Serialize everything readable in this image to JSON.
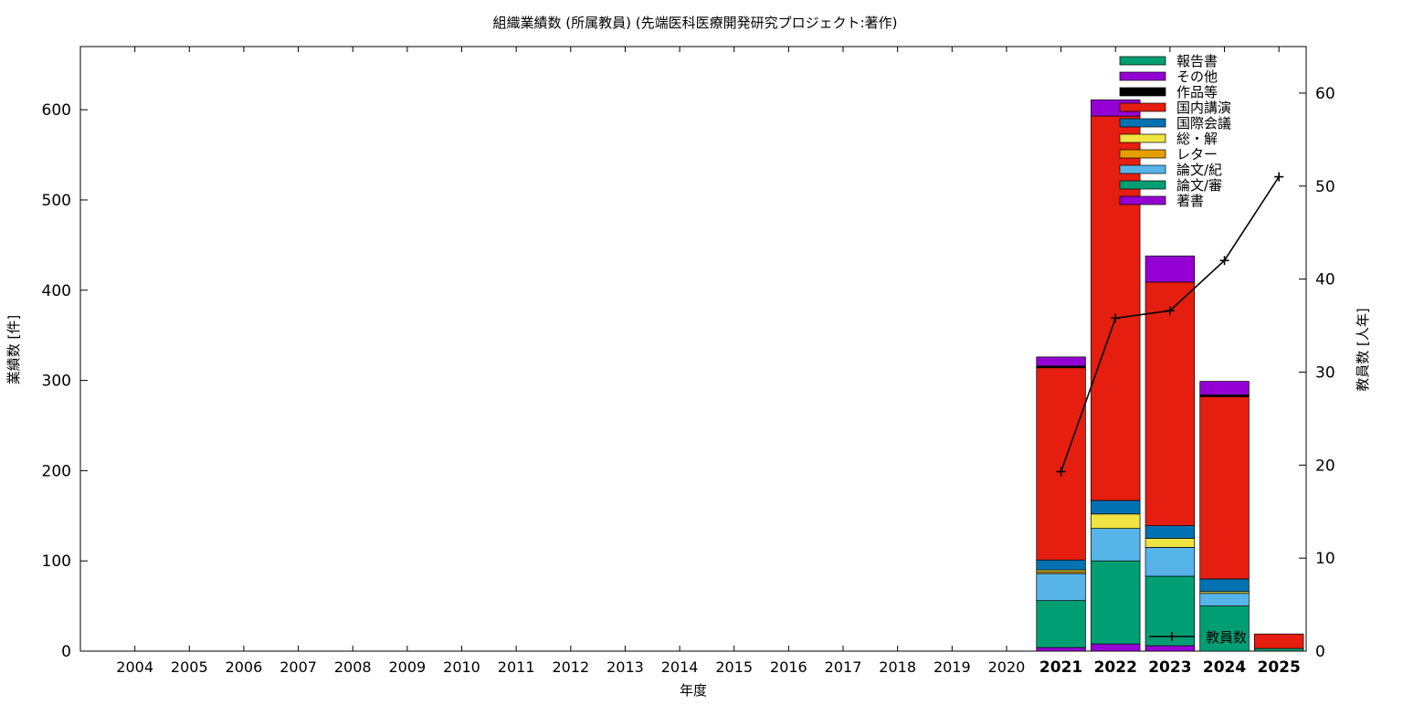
{
  "chart_data": {
    "type": "bar",
    "title": "組織業績数 (所属教員) (先端医科医療開発研究プロジェクト:著作)",
    "xlabel": "年度",
    "ylabel": "業績数 [件]",
    "y2label": "教員数 [人年]",
    "categories": [
      "2004",
      "2005",
      "2006",
      "2007",
      "2008",
      "2009",
      "2010",
      "2011",
      "2012",
      "2013",
      "2014",
      "2015",
      "2016",
      "2017",
      "2018",
      "2019",
      "2020",
      "2021",
      "2022",
      "2023",
      "2024",
      "2025"
    ],
    "bold_categories": [
      "2021",
      "2022",
      "2023",
      "2024",
      "2025"
    ],
    "ylim": [
      0,
      670
    ],
    "yticks": [
      0,
      100,
      200,
      300,
      400,
      500,
      600
    ],
    "y2lim": [
      0,
      65
    ],
    "y2ticks": [
      0,
      10,
      20,
      30,
      40,
      50,
      60
    ],
    "stacked": true,
    "legend_position": "top-right",
    "series": [
      {
        "name": "著書",
        "color": "#9400d3",
        "values": [
          0,
          0,
          0,
          0,
          0,
          0,
          0,
          0,
          0,
          0,
          0,
          0,
          0,
          0,
          0,
          0,
          0,
          4,
          8,
          6,
          0,
          0
        ]
      },
      {
        "name": "論文/審",
        "color": "#009e73",
        "values": [
          0,
          0,
          0,
          0,
          0,
          0,
          0,
          0,
          0,
          0,
          0,
          0,
          0,
          0,
          0,
          0,
          0,
          52,
          92,
          77,
          50,
          3
        ]
      },
      {
        "name": "論文/紀",
        "color": "#56b4e9",
        "values": [
          0,
          0,
          0,
          0,
          0,
          0,
          0,
          0,
          0,
          0,
          0,
          0,
          0,
          0,
          0,
          0,
          0,
          30,
          36,
          32,
          14,
          0
        ]
      },
      {
        "name": "レター",
        "color": "#e69f00",
        "values": [
          0,
          0,
          0,
          0,
          0,
          0,
          0,
          0,
          0,
          0,
          0,
          0,
          0,
          0,
          0,
          0,
          0,
          2,
          0,
          0,
          0,
          0
        ]
      },
      {
        "name": "総・解",
        "color": "#f0e442",
        "values": [
          0,
          0,
          0,
          0,
          0,
          0,
          0,
          0,
          0,
          0,
          0,
          0,
          0,
          0,
          0,
          0,
          0,
          2,
          16,
          10,
          2,
          0
        ]
      },
      {
        "name": "国際会議",
        "color": "#0072b2",
        "values": [
          0,
          0,
          0,
          0,
          0,
          0,
          0,
          0,
          0,
          0,
          0,
          0,
          0,
          0,
          0,
          0,
          0,
          11,
          15,
          14,
          14,
          0
        ]
      },
      {
        "name": "国内講演",
        "color": "#e51e10",
        "values": [
          0,
          0,
          0,
          0,
          0,
          0,
          0,
          0,
          0,
          0,
          0,
          0,
          0,
          0,
          0,
          0,
          0,
          213,
          426,
          270,
          202,
          16
        ]
      },
      {
        "name": "作品等",
        "color": "#000000",
        "values": [
          0,
          0,
          0,
          0,
          0,
          0,
          0,
          0,
          0,
          0,
          0,
          0,
          0,
          0,
          0,
          0,
          0,
          2,
          0,
          0,
          2,
          0
        ]
      },
      {
        "name": "その他",
        "color": "#9400d3",
        "values": [
          0,
          0,
          0,
          0,
          0,
          0,
          0,
          0,
          0,
          0,
          0,
          0,
          0,
          0,
          0,
          0,
          0,
          10,
          18,
          29,
          15,
          0
        ]
      },
      {
        "name": "報告書",
        "color": "#009e73",
        "values": [
          0,
          0,
          0,
          0,
          0,
          0,
          0,
          0,
          0,
          0,
          0,
          0,
          0,
          0,
          0,
          0,
          0,
          0,
          0,
          0,
          0,
          0
        ]
      }
    ],
    "line_series": {
      "name": "教員数",
      "color": "#000000",
      "axis": "y2",
      "x": [
        "2021",
        "2022",
        "2023",
        "2024",
        "2025"
      ],
      "values": [
        19.3,
        35.8,
        36.6,
        42.0,
        51.0
      ]
    }
  }
}
